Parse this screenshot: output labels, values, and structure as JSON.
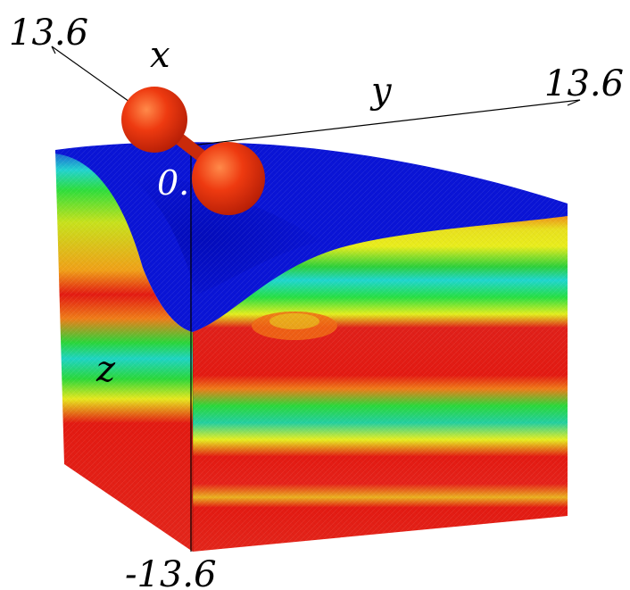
{
  "axes": {
    "x_label": "x",
    "y_label": "y",
    "z_label": "z",
    "x_max_label": "13.6",
    "y_max_label": "13.6",
    "z_min_label": "-13.6",
    "origin_label": "0."
  },
  "colors": {
    "background": "#ffffff",
    "top_surface": "#0a14d6",
    "deep_red": "#e31a12",
    "orange": "#f06a14",
    "yellow": "#e8e81a",
    "green": "#26e23a",
    "cyan": "#1ad6d2",
    "sphere": "#ee3a10",
    "axis_line": "#000000"
  },
  "objects": {
    "molecule": "two red spheres joined at the origin (diatomic molecule)",
    "block": "cutaway cube of a colored density field"
  }
}
